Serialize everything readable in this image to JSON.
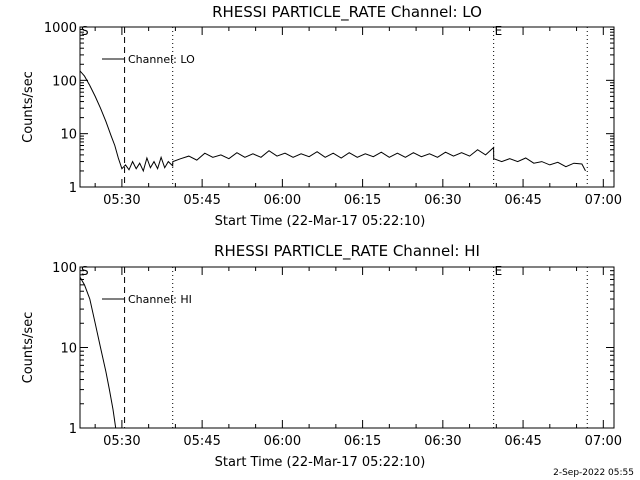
{
  "footer": "2-Sep-2022 05:55",
  "chart_data": [
    {
      "type": "line",
      "title": "RHESSI PARTICLE_RATE Channel: LO",
      "xlabel": "Start Time (22-Mar-17 05:22:10)",
      "ylabel": "Counts/sec",
      "y_scale": "log",
      "xlim": [
        "05:22:10",
        "07:02:00"
      ],
      "ylim": [
        1,
        1000
      ],
      "x_ticks": [
        "05:30",
        "05:45",
        "06:00",
        "06:15",
        "06:30",
        "06:45",
        "07:00"
      ],
      "y_ticks": [
        {
          "value": 1,
          "label": "1"
        },
        {
          "value": 10,
          "label": "10"
        },
        {
          "value": 100,
          "label": "100"
        },
        {
          "value": 1000,
          "label": "1000"
        }
      ],
      "legend": {
        "placement": "top-left",
        "entries": [
          "Channel: LO"
        ]
      },
      "markers": [
        {
          "time": "05:22:10",
          "label": "S",
          "style": "none"
        },
        {
          "time": "05:30:30",
          "label": "",
          "style": "dashed"
        },
        {
          "time": "05:39:30",
          "label": "",
          "style": "dotted"
        },
        {
          "time": "06:39:30",
          "label": "E",
          "style": "dotted"
        },
        {
          "time": "06:57:00",
          "label": "",
          "style": "dotted"
        }
      ],
      "series": [
        {
          "name": "Channel: LO",
          "x": [
            "05:22:10",
            "05:23:00",
            "05:24:00",
            "05:25:00",
            "05:26:00",
            "05:27:00",
            "05:28:00",
            "05:28:40",
            "05:29:20",
            "05:30:00",
            "05:30:40",
            "05:31:20",
            "05:32:00",
            "05:32:40",
            "05:33:20",
            "05:34:00",
            "05:34:40",
            "05:35:20",
            "05:36:00",
            "05:36:40",
            "05:37:20",
            "05:38:00",
            "05:38:40",
            "05:39:30",
            "05:39:31",
            "05:41:00",
            "05:42:30",
            "05:44:00",
            "05:45:30",
            "05:47:00",
            "05:48:30",
            "05:50:00",
            "05:51:30",
            "05:53:00",
            "05:54:30",
            "05:56:00",
            "05:57:30",
            "05:59:00",
            "06:00:30",
            "06:02:00",
            "06:03:30",
            "06:05:00",
            "06:06:30",
            "06:08:00",
            "06:09:30",
            "06:11:00",
            "06:12:30",
            "06:14:00",
            "06:15:30",
            "06:17:00",
            "06:18:30",
            "06:20:00",
            "06:21:30",
            "06:23:00",
            "06:24:30",
            "06:26:00",
            "06:27:30",
            "06:29:00",
            "06:30:30",
            "06:32:00",
            "06:33:30",
            "06:35:00",
            "06:36:30",
            "06:38:00",
            "06:39:30",
            "06:39:31",
            "06:41:00",
            "06:42:30",
            "06:44:00",
            "06:45:30",
            "06:47:00",
            "06:48:30",
            "06:50:00",
            "06:51:30",
            "06:53:00",
            "06:54:30",
            "06:56:00",
            "06:56:40"
          ],
          "y": [
            150,
            120,
            80,
            50,
            30,
            17,
            9,
            6,
            3.5,
            2.2,
            2.6,
            2.1,
            3.0,
            2.2,
            2.8,
            2.0,
            3.5,
            2.3,
            3.0,
            2.2,
            3.6,
            2.3,
            3.0,
            2.5,
            3.0,
            3.4,
            3.8,
            3.2,
            4.3,
            3.6,
            4.0,
            3.4,
            4.4,
            3.6,
            4.2,
            3.6,
            4.8,
            3.8,
            4.3,
            3.6,
            4.2,
            3.7,
            4.6,
            3.6,
            4.3,
            3.5,
            4.4,
            3.6,
            4.2,
            3.7,
            4.5,
            3.6,
            4.3,
            3.6,
            4.4,
            3.7,
            4.2,
            3.6,
            4.5,
            3.8,
            4.4,
            3.8,
            5.0,
            4.0,
            5.5,
            3.4,
            3.0,
            3.4,
            3.0,
            3.5,
            2.8,
            3.0,
            2.6,
            2.9,
            2.4,
            2.8,
            2.7,
            2.0
          ]
        }
      ]
    },
    {
      "type": "line",
      "title": "RHESSI PARTICLE_RATE Channel: HI",
      "xlabel": "Start Time (22-Mar-17 05:22:10)",
      "ylabel": "Counts/sec",
      "y_scale": "log",
      "xlim": [
        "05:22:10",
        "07:02:00"
      ],
      "ylim": [
        1,
        100
      ],
      "x_ticks": [
        "05:30",
        "05:45",
        "06:00",
        "06:15",
        "06:30",
        "06:45",
        "07:00"
      ],
      "y_ticks": [
        {
          "value": 1,
          "label": "1"
        },
        {
          "value": 10,
          "label": "10"
        },
        {
          "value": 100,
          "label": "100"
        }
      ],
      "legend": {
        "placement": "top-left",
        "entries": [
          "Channel: HI"
        ]
      },
      "markers": [
        {
          "time": "05:22:10",
          "label": "S",
          "style": "none"
        },
        {
          "time": "05:30:30",
          "label": "",
          "style": "dashed"
        },
        {
          "time": "05:39:30",
          "label": "",
          "style": "dotted"
        },
        {
          "time": "06:39:30",
          "label": "E",
          "style": "dotted"
        },
        {
          "time": "06:57:00",
          "label": "",
          "style": "dotted"
        }
      ],
      "series": [
        {
          "name": "Channel: HI",
          "x": [
            "05:22:10",
            "05:23:00",
            "05:24:00",
            "05:25:00",
            "05:26:00",
            "05:27:00",
            "05:27:40",
            "05:28:20",
            "05:28:50"
          ],
          "y": [
            75,
            60,
            40,
            20,
            10,
            5,
            3,
            1.7,
            1.0
          ]
        }
      ]
    }
  ]
}
